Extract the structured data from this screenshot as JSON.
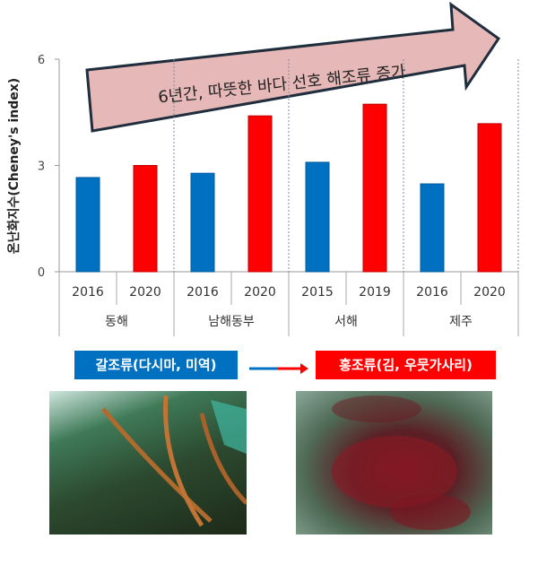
{
  "chart_data": {
    "type": "bar",
    "ylabel": "온난화지수(Cheney's index)",
    "ylim": [
      0,
      6
    ],
    "yticks": [
      0,
      3,
      6
    ],
    "groups": [
      "동해",
      "남해동부",
      "서해",
      "제주"
    ],
    "categories": [
      "2016",
      "2020",
      "2016",
      "2020",
      "2015",
      "2019",
      "2016",
      "2020"
    ],
    "values": [
      2.66,
      3.0,
      2.78,
      4.4,
      3.09,
      4.73,
      2.48,
      4.18
    ],
    "bar_colors": [
      "#0070c0",
      "#ff0000",
      "#0070c0",
      "#ff0000",
      "#0070c0",
      "#ff0000",
      "#0070c0",
      "#ff0000"
    ],
    "grid": false,
    "annotation": "6년간, 따뜻한 바다 선호 해조류 증가",
    "annotation_color": "#e6b9b8"
  },
  "legend": {
    "from_label": "갈조류(다시마, 미역)",
    "from_color": "#0070c0",
    "to_label": "홍조류(김, 우뭇가사리)",
    "to_color": "#ff0000"
  },
  "photos": {
    "left": "kelp-photo",
    "right": "red-algae-photo"
  }
}
